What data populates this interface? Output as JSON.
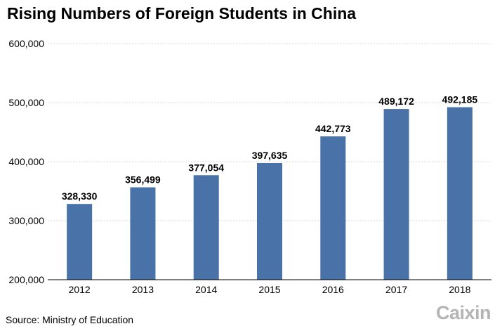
{
  "header": {
    "title": "Rising Numbers of Foreign Students in China"
  },
  "footer": {
    "source": "Source: Ministry of Education",
    "logo": "Caixin"
  },
  "chart_data": {
    "type": "bar",
    "title": "Rising Numbers of Foreign Students in China",
    "xlabel": "",
    "ylabel": "",
    "categories": [
      "2012",
      "2013",
      "2014",
      "2015",
      "2016",
      "2017",
      "2018"
    ],
    "values": [
      328330,
      356499,
      377054,
      397635,
      442773,
      489172,
      492185
    ],
    "value_labels": [
      "328,330",
      "356,499",
      "377,054",
      "397,635",
      "442,773",
      "489,172",
      "492,185"
    ],
    "ylim": [
      200000,
      600000
    ],
    "yticks": [
      200000,
      300000,
      400000,
      500000,
      600000
    ],
    "ytick_labels": [
      "200,000",
      "300,000",
      "400,000",
      "500,000",
      "600,000"
    ],
    "grid": true,
    "legend": "none",
    "bar_color": "#4872a8"
  }
}
